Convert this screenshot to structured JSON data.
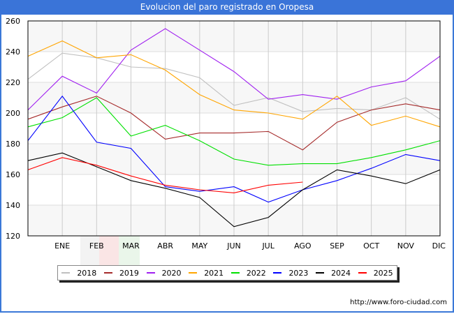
{
  "title": "Evolucion del paro registrado en Oropesa",
  "footer_url": "http://www.foro-ciudad.com",
  "chart_data": {
    "type": "line",
    "title": "Evolucion del paro registrado en Oropesa",
    "xlabel": "",
    "ylabel": "",
    "categories": [
      "",
      "ENE",
      "FEB",
      "MAR",
      "ABR",
      "MAY",
      "JUN",
      "JUL",
      "AGO",
      "SEP",
      "OCT",
      "NOV",
      "DIC"
    ],
    "ylim": [
      120,
      260
    ],
    "yticks": [
      120,
      140,
      160,
      180,
      200,
      220,
      240,
      260
    ],
    "grid": true,
    "legend_position": "bottom",
    "series": [
      {
        "name": "2018",
        "color": "#c0c0c0",
        "values": [
          222,
          239,
          236,
          230,
          229,
          223,
          205,
          210,
          201,
          203,
          202,
          210,
          196
        ]
      },
      {
        "name": "2019",
        "color": "#a52a2a",
        "values": [
          196,
          204,
          211,
          200,
          183,
          187,
          187,
          188,
          176,
          194,
          202,
          206,
          202
        ]
      },
      {
        "name": "2020",
        "color": "#a020f0",
        "values": [
          202,
          224,
          213,
          241,
          255,
          241,
          227,
          209,
          212,
          209,
          217,
          221,
          237
        ]
      },
      {
        "name": "2021",
        "color": "#ffa500",
        "values": [
          237,
          247,
          236,
          238,
          228,
          212,
          202,
          200,
          196,
          211,
          192,
          198,
          191
        ]
      },
      {
        "name": "2022",
        "color": "#00e000",
        "values": [
          191,
          197,
          210,
          185,
          192,
          182,
          170,
          166,
          167,
          167,
          171,
          176,
          182
        ]
      },
      {
        "name": "2023",
        "color": "#0000ff",
        "values": [
          182,
          211,
          181,
          177,
          152,
          149,
          152,
          142,
          150,
          156,
          164,
          173,
          169
        ]
      },
      {
        "name": "2024",
        "color": "#000000",
        "values": [
          169,
          174,
          165,
          156,
          151,
          145,
          126,
          132,
          150,
          163,
          159,
          154,
          163
        ]
      },
      {
        "name": "2025",
        "color": "#ff0000",
        "values": [
          163,
          171,
          166,
          159,
          153,
          150,
          148,
          153,
          155
        ]
      }
    ]
  }
}
